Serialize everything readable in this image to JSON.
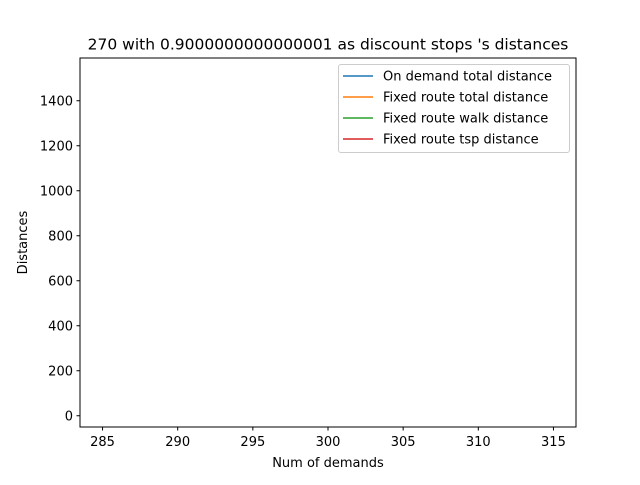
{
  "chart_data": {
    "type": "line",
    "title": "270 with 0.9000000000000001 as discount stops 's distances",
    "xlabel": "Num of demands",
    "ylabel": "Distances",
    "xlim": [
      283.5,
      316.5
    ],
    "ylim": [
      -50,
      1590
    ],
    "xticks": [
      285,
      290,
      295,
      300,
      305,
      310,
      315
    ],
    "yticks": [
      0,
      200,
      400,
      600,
      800,
      1000,
      1200,
      1400
    ],
    "grid": false,
    "legend_position": "top-right",
    "series": [
      {
        "name": "On demand total distance",
        "color": "#1f77b4",
        "x": [],
        "y": []
      },
      {
        "name": "Fixed route total distance",
        "color": "#ff7f0e",
        "x": [],
        "y": []
      },
      {
        "name": "Fixed route walk distance",
        "color": "#2ca02c",
        "x": [],
        "y": []
      },
      {
        "name": "Fixed route tsp distance",
        "color": "#d62728",
        "x": [],
        "y": []
      }
    ]
  }
}
